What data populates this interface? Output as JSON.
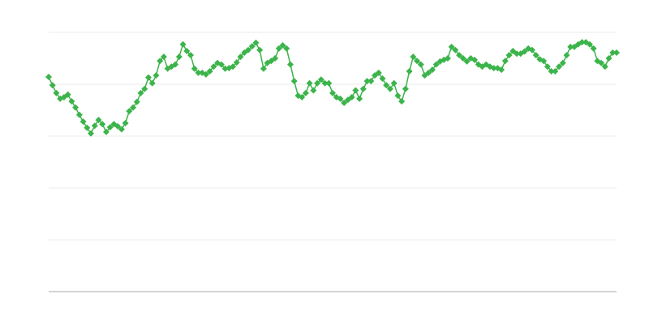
{
  "chart_data": {
    "type": "line",
    "title": "",
    "xlabel": "",
    "ylabel": "",
    "ylim": [
      0,
      5
    ],
    "grid": true,
    "marker": "diamond",
    "colors": {
      "series": "#3cb44b",
      "grid": "#ebebeb",
      "axis": "#aaaaaa"
    },
    "series": [
      {
        "values": [
          4.14,
          3.98,
          3.83,
          3.72,
          3.75,
          3.8,
          3.67,
          3.55,
          3.41,
          3.28,
          3.16,
          3.05,
          3.2,
          3.31,
          3.23,
          3.08,
          3.17,
          3.23,
          3.19,
          3.13,
          3.25,
          3.48,
          3.55,
          3.66,
          3.83,
          3.91,
          4.13,
          4.02,
          4.17,
          4.45,
          4.53,
          4.3,
          4.34,
          4.38,
          4.53,
          4.77,
          4.64,
          4.56,
          4.3,
          4.22,
          4.22,
          4.19,
          4.25,
          4.34,
          4.41,
          4.38,
          4.3,
          4.31,
          4.34,
          4.42,
          4.53,
          4.61,
          4.66,
          4.73,
          4.8,
          4.66,
          4.3,
          4.41,
          4.45,
          4.5,
          4.69,
          4.75,
          4.69,
          4.38,
          4.06,
          3.78,
          3.75,
          3.83,
          4.02,
          3.88,
          4.02,
          4.09,
          4.02,
          4.02,
          3.83,
          3.75,
          3.72,
          3.64,
          3.7,
          3.75,
          3.88,
          3.72,
          3.91,
          4.06,
          4.06,
          4.17,
          4.22,
          4.11,
          3.98,
          3.91,
          4.02,
          3.78,
          3.67,
          3.91,
          4.25,
          4.53,
          4.45,
          4.38,
          4.17,
          4.22,
          4.28,
          4.38,
          4.44,
          4.47,
          4.5,
          4.72,
          4.66,
          4.56,
          4.5,
          4.44,
          4.5,
          4.47,
          4.38,
          4.34,
          4.38,
          4.34,
          4.31,
          4.31,
          4.28,
          4.45,
          4.56,
          4.64,
          4.59,
          4.59,
          4.63,
          4.69,
          4.66,
          4.56,
          4.48,
          4.45,
          4.34,
          4.25,
          4.25,
          4.34,
          4.41,
          4.56,
          4.72,
          4.72,
          4.77,
          4.81,
          4.81,
          4.77,
          4.69,
          4.45,
          4.41,
          4.34,
          4.5,
          4.61,
          4.61
        ]
      }
    ]
  }
}
